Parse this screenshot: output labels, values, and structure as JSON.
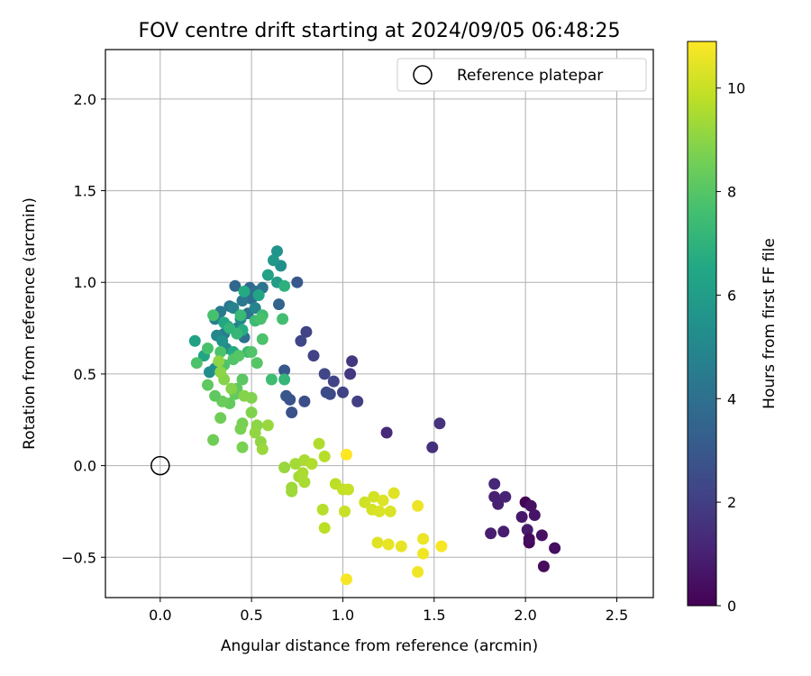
{
  "chart_data": {
    "type": "scatter",
    "title": "FOV centre drift starting at 2024/09/05 06:48:25",
    "xlabel": "Angular distance from reference (arcmin)",
    "ylabel": "Rotation from reference (arcmin)",
    "xlim": [
      -0.3,
      2.7
    ],
    "ylim": [
      -0.72,
      2.27
    ],
    "xticks": [
      0.0,
      0.5,
      1.0,
      1.5,
      2.0,
      2.5
    ],
    "xtick_labels": [
      "0.0",
      "0.5",
      "1.0",
      "1.5",
      "2.0",
      "2.5"
    ],
    "yticks": [
      -0.5,
      0.0,
      0.5,
      1.0,
      1.5,
      2.0
    ],
    "ytick_labels": [
      "−0.5",
      "0.0",
      "0.5",
      "1.0",
      "1.5",
      "2.0"
    ],
    "grid": true,
    "colormap": "viridis",
    "colorbar": {
      "label": "Hours from first FF file",
      "range": [
        0,
        10.9
      ],
      "ticks": [
        0,
        2,
        4,
        6,
        8,
        10
      ],
      "tick_labels": [
        "0",
        "2",
        "4",
        "6",
        "8",
        "10"
      ]
    },
    "legend": {
      "placement": "upper right",
      "entries": [
        {
          "label": "Reference platepar",
          "marker": "open-circle"
        }
      ]
    },
    "reference_point": {
      "x": 0.0,
      "y": 0.0
    },
    "points": [
      {
        "x": 2.0,
        "y": -0.2,
        "h": 0.1
      },
      {
        "x": 2.02,
        "y": -0.42,
        "h": 0.2
      },
      {
        "x": 2.1,
        "y": -0.55,
        "h": 0.3
      },
      {
        "x": 2.16,
        "y": -0.45,
        "h": 0.4
      },
      {
        "x": 2.09,
        "y": -0.38,
        "h": 0.5
      },
      {
        "x": 2.03,
        "y": -0.22,
        "h": 0.5
      },
      {
        "x": 2.05,
        "y": -0.27,
        "h": 0.6
      },
      {
        "x": 1.98,
        "y": -0.28,
        "h": 0.7
      },
      {
        "x": 2.01,
        "y": -0.35,
        "h": 0.8
      },
      {
        "x": 1.88,
        "y": -0.36,
        "h": 0.9
      },
      {
        "x": 1.81,
        "y": -0.37,
        "h": 0.9
      },
      {
        "x": 1.85,
        "y": -0.21,
        "h": 1.0
      },
      {
        "x": 1.83,
        "y": -0.17,
        "h": 1.0
      },
      {
        "x": 1.89,
        "y": -0.17,
        "h": 1.1
      },
      {
        "x": 1.83,
        "y": -0.1,
        "h": 1.2
      },
      {
        "x": 2.02,
        "y": -0.4,
        "h": 0.3
      },
      {
        "x": 1.24,
        "y": 0.18,
        "h": 1.3
      },
      {
        "x": 1.49,
        "y": 0.1,
        "h": 1.5
      },
      {
        "x": 1.53,
        "y": 0.23,
        "h": 1.6
      },
      {
        "x": 1.05,
        "y": 0.57,
        "h": 1.7
      },
      {
        "x": 1.04,
        "y": 0.5,
        "h": 1.8
      },
      {
        "x": 1.08,
        "y": 0.35,
        "h": 2.0
      },
      {
        "x": 1.0,
        "y": 0.4,
        "h": 2.1
      },
      {
        "x": 0.95,
        "y": 0.46,
        "h": 2.2
      },
      {
        "x": 0.9,
        "y": 0.5,
        "h": 2.3
      },
      {
        "x": 0.93,
        "y": 0.39,
        "h": 2.4
      },
      {
        "x": 0.91,
        "y": 0.4,
        "h": 2.5
      },
      {
        "x": 0.84,
        "y": 0.6,
        "h": 2.1
      },
      {
        "x": 0.8,
        "y": 0.73,
        "h": 2.2
      },
      {
        "x": 0.77,
        "y": 0.68,
        "h": 2.3
      },
      {
        "x": 0.79,
        "y": 0.35,
        "h": 2.6
      },
      {
        "x": 0.72,
        "y": 0.29,
        "h": 2.7
      },
      {
        "x": 0.71,
        "y": 0.36,
        "h": 2.8
      },
      {
        "x": 0.69,
        "y": 0.38,
        "h": 2.9
      },
      {
        "x": 0.68,
        "y": 0.52,
        "h": 3.0
      },
      {
        "x": 0.75,
        "y": 1.0,
        "h": 3.0
      },
      {
        "x": 0.65,
        "y": 0.88,
        "h": 3.5
      },
      {
        "x": 0.41,
        "y": 0.98,
        "h": 3.6
      },
      {
        "x": 0.49,
        "y": 0.97,
        "h": 3.7
      },
      {
        "x": 0.5,
        "y": 0.91,
        "h": 3.9
      },
      {
        "x": 0.52,
        "y": 0.95,
        "h": 4.0
      },
      {
        "x": 0.46,
        "y": 0.7,
        "h": 4.0
      },
      {
        "x": 0.48,
        "y": 0.83,
        "h": 4.1
      },
      {
        "x": 0.56,
        "y": 0.97,
        "h": 4.2
      },
      {
        "x": 0.45,
        "y": 0.9,
        "h": 4.3
      },
      {
        "x": 0.38,
        "y": 0.87,
        "h": 4.3
      },
      {
        "x": 0.33,
        "y": 0.84,
        "h": 4.4
      },
      {
        "x": 0.35,
        "y": 0.72,
        "h": 4.5
      },
      {
        "x": 0.3,
        "y": 0.8,
        "h": 4.6
      },
      {
        "x": 0.42,
        "y": 0.75,
        "h": 4.7
      },
      {
        "x": 0.4,
        "y": 0.86,
        "h": 4.8
      },
      {
        "x": 0.52,
        "y": 0.86,
        "h": 4.9
      },
      {
        "x": 0.31,
        "y": 0.71,
        "h": 5.0
      },
      {
        "x": 0.44,
        "y": 0.8,
        "h": 5.1
      },
      {
        "x": 0.36,
        "y": 0.64,
        "h": 5.2
      },
      {
        "x": 0.27,
        "y": 0.51,
        "h": 5.3
      },
      {
        "x": 0.3,
        "y": 0.53,
        "h": 5.4
      },
      {
        "x": 0.34,
        "y": 0.68,
        "h": 5.5
      },
      {
        "x": 0.37,
        "y": 0.76,
        "h": 5.6
      },
      {
        "x": 0.66,
        "y": 1.09,
        "h": 5.4
      },
      {
        "x": 0.64,
        "y": 1.17,
        "h": 5.6
      },
      {
        "x": 0.62,
        "y": 1.12,
        "h": 5.8
      },
      {
        "x": 0.64,
        "y": 1.0,
        "h": 6.0
      },
      {
        "x": 0.59,
        "y": 1.04,
        "h": 6.2
      },
      {
        "x": 0.54,
        "y": 0.93,
        "h": 6.4
      },
      {
        "x": 0.46,
        "y": 0.95,
        "h": 6.6
      },
      {
        "x": 0.19,
        "y": 0.68,
        "h": 6.2
      },
      {
        "x": 0.24,
        "y": 0.6,
        "h": 6.4
      },
      {
        "x": 0.35,
        "y": 0.78,
        "h": 6.5
      },
      {
        "x": 0.4,
        "y": 0.62,
        "h": 6.6
      },
      {
        "x": 0.45,
        "y": 0.74,
        "h": 6.7
      },
      {
        "x": 0.68,
        "y": 0.98,
        "h": 6.9
      },
      {
        "x": 0.68,
        "y": 0.47,
        "h": 7.2
      },
      {
        "x": 0.67,
        "y": 0.8,
        "h": 7.6
      },
      {
        "x": 0.61,
        "y": 0.47,
        "h": 7.5
      },
      {
        "x": 0.56,
        "y": 0.82,
        "h": 7.5
      },
      {
        "x": 0.52,
        "y": 0.79,
        "h": 7.4
      },
      {
        "x": 0.48,
        "y": 0.62,
        "h": 7.3
      },
      {
        "x": 0.44,
        "y": 0.82,
        "h": 7.3
      },
      {
        "x": 0.42,
        "y": 0.72,
        "h": 7.2
      },
      {
        "x": 0.38,
        "y": 0.75,
        "h": 7.1
      },
      {
        "x": 0.29,
        "y": 0.82,
        "h": 7.7
      },
      {
        "x": 0.26,
        "y": 0.64,
        "h": 7.7
      },
      {
        "x": 0.2,
        "y": 0.56,
        "h": 7.8
      },
      {
        "x": 0.33,
        "y": 0.62,
        "h": 7.8
      },
      {
        "x": 0.35,
        "y": 0.55,
        "h": 7.9
      },
      {
        "x": 0.4,
        "y": 0.58,
        "h": 7.9
      },
      {
        "x": 0.43,
        "y": 0.6,
        "h": 8.0
      },
      {
        "x": 0.5,
        "y": 0.62,
        "h": 7.9
      },
      {
        "x": 0.53,
        "y": 0.56,
        "h": 8.0
      },
      {
        "x": 0.56,
        "y": 0.69,
        "h": 7.8
      },
      {
        "x": 0.55,
        "y": 0.8,
        "h": 7.7
      },
      {
        "x": 0.45,
        "y": 0.47,
        "h": 8.1
      },
      {
        "x": 0.42,
        "y": 0.42,
        "h": 8.2
      },
      {
        "x": 0.41,
        "y": 0.39,
        "h": 8.3
      },
      {
        "x": 0.38,
        "y": 0.34,
        "h": 8.3
      },
      {
        "x": 0.34,
        "y": 0.35,
        "h": 8.4
      },
      {
        "x": 0.3,
        "y": 0.38,
        "h": 8.2
      },
      {
        "x": 0.26,
        "y": 0.44,
        "h": 8.2
      },
      {
        "x": 0.33,
        "y": 0.26,
        "h": 8.5
      },
      {
        "x": 0.29,
        "y": 0.14,
        "h": 8.5
      },
      {
        "x": 0.45,
        "y": 0.23,
        "h": 8.6
      },
      {
        "x": 0.45,
        "y": 0.1,
        "h": 8.7
      },
      {
        "x": 0.44,
        "y": 0.2,
        "h": 8.7
      },
      {
        "x": 0.5,
        "y": 0.29,
        "h": 8.8
      },
      {
        "x": 0.5,
        "y": 0.37,
        "h": 8.8
      },
      {
        "x": 0.46,
        "y": 0.38,
        "h": 8.9
      },
      {
        "x": 0.39,
        "y": 0.42,
        "h": 8.9
      },
      {
        "x": 0.35,
        "y": 0.47,
        "h": 8.9
      },
      {
        "x": 0.33,
        "y": 0.51,
        "h": 9.0
      },
      {
        "x": 0.32,
        "y": 0.57,
        "h": 9.0
      },
      {
        "x": 0.53,
        "y": 0.22,
        "h": 9.0
      },
      {
        "x": 0.52,
        "y": 0.18,
        "h": 9.1
      },
      {
        "x": 0.55,
        "y": 0.13,
        "h": 9.1
      },
      {
        "x": 0.56,
        "y": 0.09,
        "h": 9.2
      },
      {
        "x": 0.59,
        "y": 0.22,
        "h": 9.2
      },
      {
        "x": 0.68,
        "y": -0.01,
        "h": 9.2
      },
      {
        "x": 0.72,
        "y": -0.12,
        "h": 9.3
      },
      {
        "x": 0.72,
        "y": -0.14,
        "h": 9.3
      },
      {
        "x": 0.76,
        "y": -0.06,
        "h": 9.4
      },
      {
        "x": 0.74,
        "y": 0.01,
        "h": 9.4
      },
      {
        "x": 0.78,
        "y": -0.04,
        "h": 9.5
      },
      {
        "x": 0.79,
        "y": -0.09,
        "h": 9.5
      },
      {
        "x": 0.79,
        "y": 0.03,
        "h": 9.5
      },
      {
        "x": 0.83,
        "y": 0.01,
        "h": 9.6
      },
      {
        "x": 0.87,
        "y": 0.12,
        "h": 9.6
      },
      {
        "x": 0.9,
        "y": 0.05,
        "h": 9.7
      },
      {
        "x": 0.89,
        "y": -0.24,
        "h": 9.7
      },
      {
        "x": 0.9,
        "y": -0.34,
        "h": 9.8
      },
      {
        "x": 0.96,
        "y": -0.1,
        "h": 9.8
      },
      {
        "x": 1.0,
        "y": -0.13,
        "h": 9.9
      },
      {
        "x": 1.03,
        "y": -0.13,
        "h": 10.0
      },
      {
        "x": 1.01,
        "y": -0.25,
        "h": 10.0
      },
      {
        "x": 1.12,
        "y": -0.2,
        "h": 10.1
      },
      {
        "x": 1.16,
        "y": -0.24,
        "h": 10.2
      },
      {
        "x": 1.17,
        "y": -0.17,
        "h": 10.2
      },
      {
        "x": 1.2,
        "y": -0.25,
        "h": 10.3
      },
      {
        "x": 1.22,
        "y": -0.19,
        "h": 10.3
      },
      {
        "x": 1.26,
        "y": -0.25,
        "h": 10.3
      },
      {
        "x": 1.28,
        "y": -0.15,
        "h": 10.4
      },
      {
        "x": 1.19,
        "y": -0.42,
        "h": 10.4
      },
      {
        "x": 1.25,
        "y": -0.43,
        "h": 10.5
      },
      {
        "x": 1.32,
        "y": -0.44,
        "h": 10.5
      },
      {
        "x": 1.41,
        "y": -0.22,
        "h": 10.6
      },
      {
        "x": 1.44,
        "y": -0.4,
        "h": 10.6
      },
      {
        "x": 1.44,
        "y": -0.48,
        "h": 10.7
      },
      {
        "x": 1.41,
        "y": -0.58,
        "h": 10.7
      },
      {
        "x": 1.54,
        "y": -0.44,
        "h": 10.8
      },
      {
        "x": 1.02,
        "y": -0.62,
        "h": 10.8
      },
      {
        "x": 1.02,
        "y": 0.06,
        "h": 10.9
      }
    ]
  }
}
